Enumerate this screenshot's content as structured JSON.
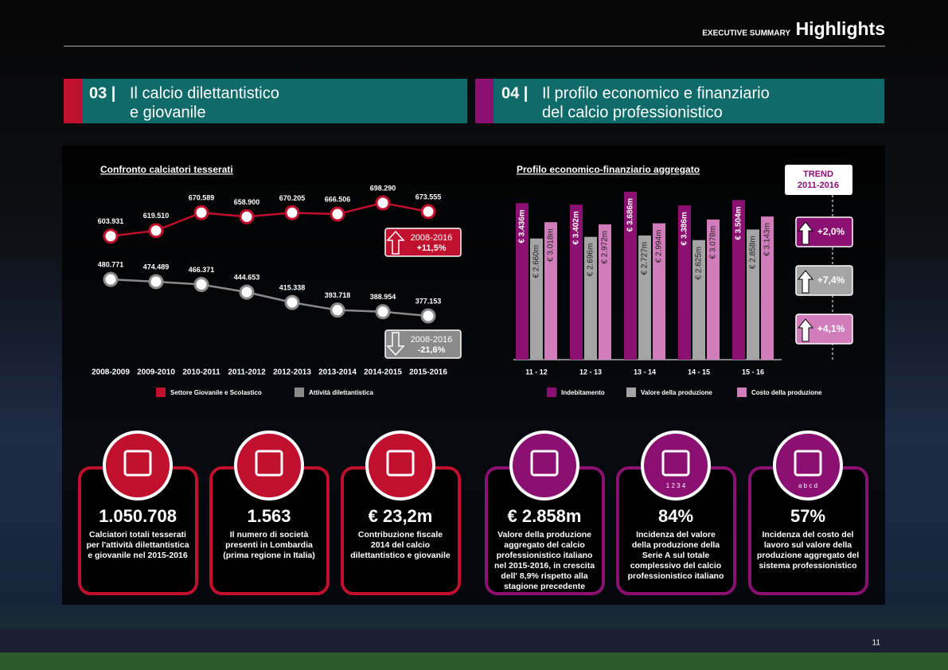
{
  "header": {
    "section": "EXECUTIVE SUMMARY",
    "title": "Highlights"
  },
  "sections": [
    {
      "number": "03 |",
      "title": [
        "Il calcio dilettantistico",
        "e giovanile"
      ]
    },
    {
      "number": "04 |",
      "title": [
        "Il profilo economico e finanziario",
        "del calcio professionistico"
      ]
    }
  ],
  "chart_data": [
    {
      "type": "line",
      "title": "Confronto calciatori tesserati",
      "categories": [
        "2008-2009",
        "2009-2010",
        "2010-2011",
        "2011-2012",
        "2012-2013",
        "2013-2014",
        "2014-2015",
        "2015-2016"
      ],
      "series": [
        {
          "name": "Settore Giovanile e Scolastico",
          "color": "#c0102e",
          "values": [
            603931,
            619510,
            670589,
            658900,
            670205,
            666506,
            698290,
            673555
          ],
          "value_labels": [
            "603.931",
            "619.510",
            "670.589",
            "658.900",
            "670.205",
            "666.506",
            "698.290",
            "673.555"
          ]
        },
        {
          "name": "Attività dilettantistica",
          "color": "#8a8a8a",
          "values": [
            480771,
            474489,
            466371,
            444653,
            415338,
            393718,
            388954,
            377153
          ],
          "value_labels": [
            "480.771",
            "474.489",
            "466.371",
            "444.653",
            "415.338",
            "393.718",
            "388.954",
            "377.153"
          ]
        }
      ],
      "annotations": [
        {
          "period": "2008-2016",
          "change": "+11,5%"
        },
        {
          "period": "2008-2016",
          "change": "-21,6%"
        }
      ]
    },
    {
      "type": "bar",
      "title": "Profilo economico-finanziario aggregato",
      "categories": [
        "11 - 12",
        "12 - 13",
        "13 - 14",
        "14 - 15",
        "15 - 16"
      ],
      "series": [
        {
          "name": "Indebitamento",
          "color": "#8c0f72",
          "values": [
            3436,
            3402,
            3686,
            3386,
            3504
          ],
          "value_labels": [
            "€ 3.436m",
            "€ 3.402m",
            "€ 3.686m",
            "€ 3.386m",
            "€ 3.504m"
          ]
        },
        {
          "name": "Valore della produzione",
          "color": "#a5a5a5",
          "values": [
            2660,
            2696,
            2727,
            2625,
            2858
          ],
          "value_labels": [
            "€ 2.660m",
            "€ 2.696m",
            "€ 2.727m",
            "€ 2.625m",
            "€ 2.858m"
          ]
        },
        {
          "name": "Costo della produzione",
          "color": "#d27dbb",
          "values": [
            3018,
            2972,
            2994,
            3078,
            3143
          ],
          "value_labels": [
            "€ 3.018m",
            "€ 2.972m",
            "€ 2.994m",
            "€ 3.078m",
            "€ 3.143m"
          ]
        }
      ],
      "trend": {
        "title": "TREND",
        "period": "2011-2016",
        "values": [
          "+2,0%",
          "+7,4%",
          "+4,1%"
        ]
      }
    }
  ],
  "cards": [
    {
      "value": "1.050.708",
      "color": "#c0102e",
      "description": [
        "Calciatori totali tesserati",
        "per l'attività dilettantistica",
        "e giovanile nel 2015-2016"
      ]
    },
    {
      "value": "1.563",
      "color": "#c0102e",
      "description": [
        "Il numero di società",
        "presenti in Lombardia",
        "(prima regione in Italia)"
      ]
    },
    {
      "value": "€ 23,2m",
      "color": "#c0102e",
      "description": [
        "Contribuzione fiscale",
        "2014 del calcio",
        "dilettantistico e giovanile"
      ]
    },
    {
      "value": "€ 2.858m",
      "color": "#8c0f72",
      "description": [
        "Valore della produzione",
        "aggregato del calcio",
        "professionistico italiano",
        "nel 2015-2016, in crescita",
        "dell' 8,9% rispetto alla",
        "stagione precedente"
      ]
    },
    {
      "value": "84%",
      "color": "#8c0f72",
      "icon_text": "1 2 3 4",
      "description": [
        "Incidenza del valore",
        "della produzione della",
        "Serie A sul totale",
        "complessivo del calcio",
        "professionistico italiano"
      ]
    },
    {
      "value": "57%",
      "color": "#8c0f72",
      "icon_text": "a b c d",
      "description": [
        "Incidenza del costo del",
        "lavoro sul valore della",
        "produzione aggregato del",
        "sistema professionistico"
      ]
    }
  ],
  "page_number": "11"
}
